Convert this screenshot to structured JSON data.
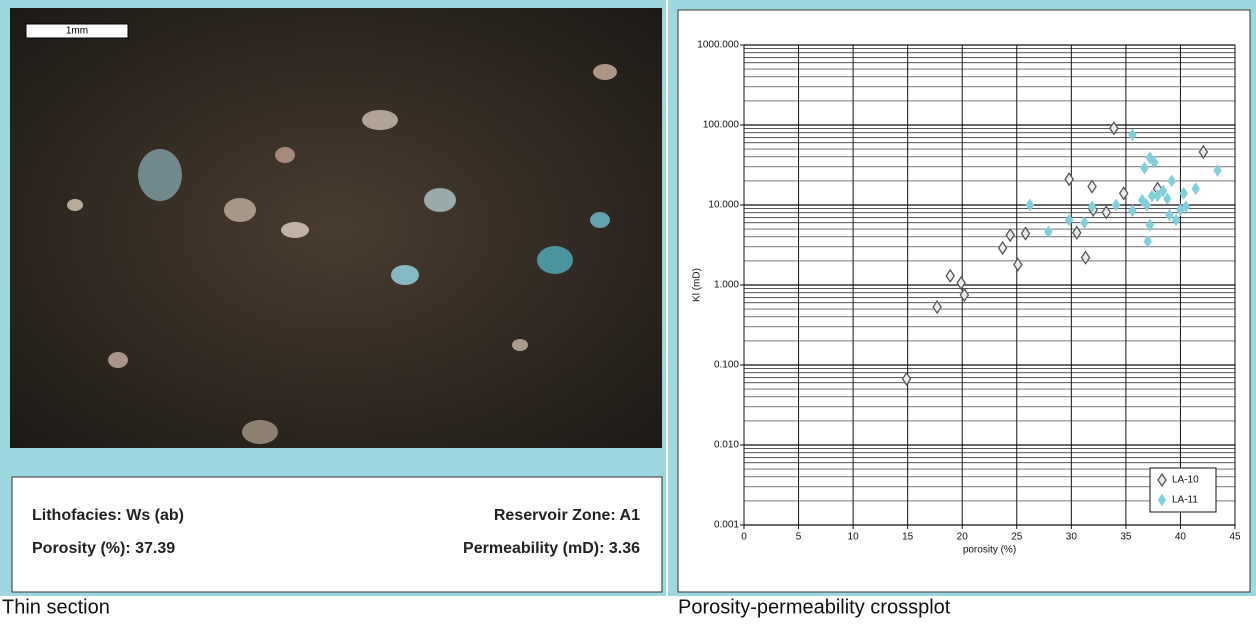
{
  "thin_section": {
    "scale_label": "1mm",
    "lithofacies": "Lithofacies: Ws (ab)",
    "reservoir_zone": "Reservoir Zone: A1",
    "porosity": "Porosity (%): 37.39",
    "permeability": "Permeability (mD): 3.36",
    "caption": "Thin section"
  },
  "crossplot_caption": "Porosity-permeability crossplot",
  "chart_data": {
    "type": "scatter",
    "xlabel": "porosity (%)",
    "ylabel": "Kl (mD)",
    "log_y": true,
    "grid": true,
    "legend": "lower right",
    "xlim": [
      0,
      45
    ],
    "xticks": [
      0,
      5,
      10,
      15,
      20,
      25,
      30,
      35,
      40,
      45
    ],
    "ylim": [
      0.001,
      1000
    ],
    "yticks": [
      {
        "value": 0.001,
        "label": "0.001"
      },
      {
        "value": 0.01,
        "label": "0.010"
      },
      {
        "value": 0.1,
        "label": "0.100"
      },
      {
        "value": 1,
        "label": "1.000"
      },
      {
        "value": 10,
        "label": "10.000"
      },
      {
        "value": 100,
        "label": "100.000"
      },
      {
        "value": 1000,
        "label": "1000.000"
      }
    ],
    "series": [
      {
        "name": "LA-10",
        "color": "#555555",
        "marker": "open-diamond",
        "x": [
          14.9,
          17.7,
          18.9,
          19.9,
          20.2,
          23.7,
          24.4,
          25.1,
          25.8,
          29.8,
          30.5,
          31.3,
          31.9,
          32.0,
          33.2,
          33.9,
          34.8,
          37.9,
          42.1
        ],
        "values": [
          0.067,
          0.53,
          1.3,
          1.06,
          0.75,
          2.9,
          4.2,
          1.8,
          4.4,
          21,
          4.5,
          2.2,
          17,
          8.7,
          8.1,
          91,
          14,
          16,
          46
        ]
      },
      {
        "name": "LA-11",
        "color": "#80d0dc",
        "marker": "filled-diamond",
        "x": [
          26.2,
          27.9,
          29.8,
          31.2,
          31.9,
          34.1,
          35.6,
          35.6,
          36.7,
          37.2,
          37.6,
          37.0,
          37.2,
          36.9,
          37.4,
          37.9,
          38.4,
          38.8,
          39.2,
          39.0,
          39.6,
          40.3,
          40.5,
          41.4,
          43.4,
          36.5,
          40.0
        ],
        "values": [
          10,
          4.6,
          6.5,
          6,
          9.5,
          10,
          75,
          8.5,
          29,
          39,
          34,
          3.5,
          5.6,
          10,
          13,
          13,
          15,
          12,
          20,
          7.5,
          6.5,
          14,
          9.5,
          16,
          27,
          11.5,
          8.7
        ]
      }
    ]
  }
}
